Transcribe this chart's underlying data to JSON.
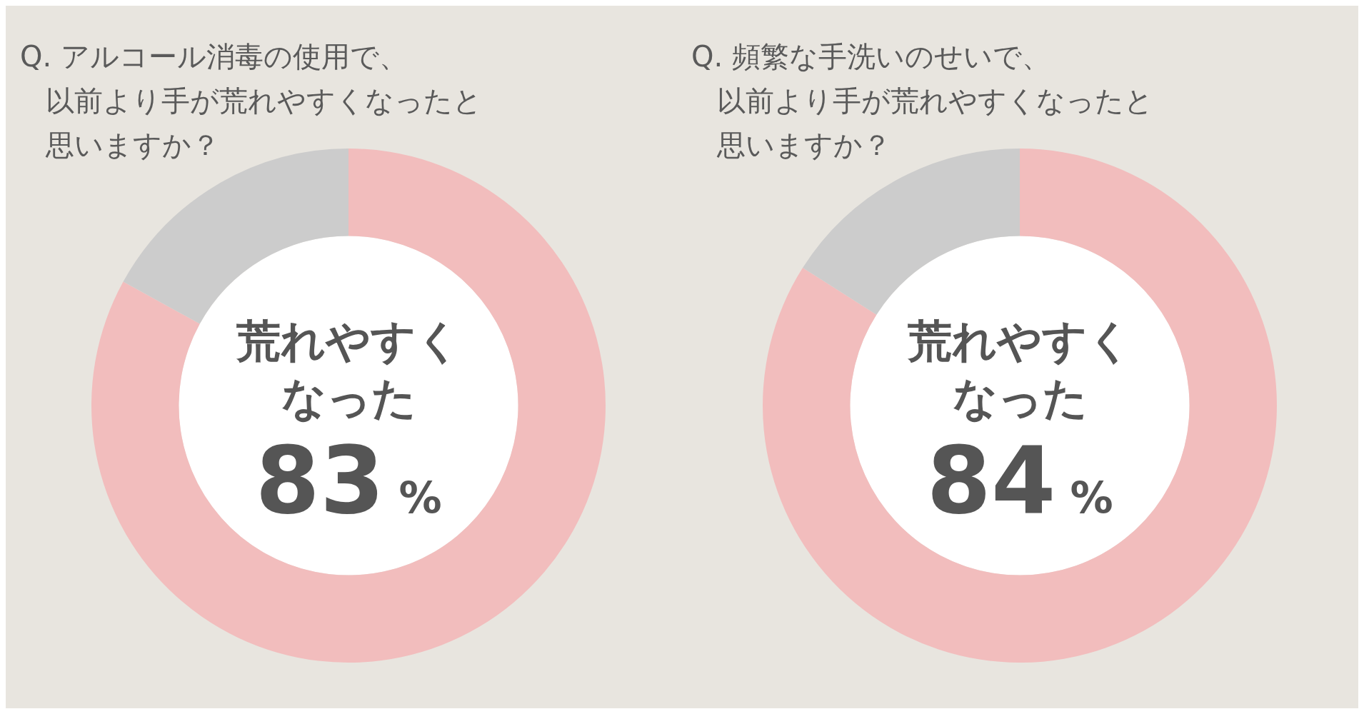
{
  "chart_data": [
    {
      "type": "donut",
      "title": "Q. アルコール消毒の使用で、以前より手が荒れやすくなったと思いますか？",
      "categories": [
        "荒れやすくなった",
        null
      ],
      "values": [
        83,
        17
      ],
      "colors": [
        "#f2bdbd",
        "#cccccc"
      ],
      "value_labels": [
        "83%",
        null
      ],
      "legend": false
    },
    {
      "type": "donut",
      "title": "Q. 頻繁な手洗いのせいで、以前より手が荒れやすくなったと思いますか？",
      "categories": [
        "荒れやすくなった",
        null
      ],
      "values": [
        84,
        16
      ],
      "colors": [
        "#f2bdbd",
        "#cccccc"
      ],
      "value_labels": [
        "84%",
        null
      ],
      "legend": false
    }
  ]
}
